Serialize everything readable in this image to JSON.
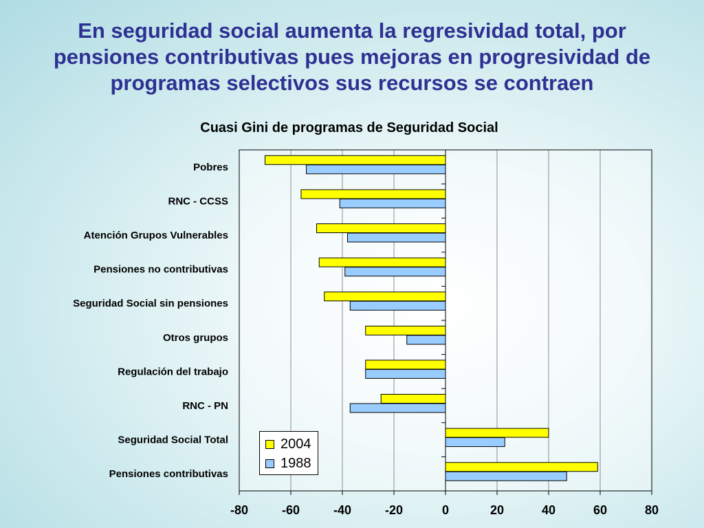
{
  "slide": {
    "title_lines": [
      "En seguridad social aumenta la regresividad total, por",
      "pensiones contributivas pues mejoras en progresividad de",
      "programas selectivos sus recursos se contraen"
    ]
  },
  "colors": {
    "s2004": "#ffff00",
    "s1988": "#99ccff",
    "title": "#2e3192"
  },
  "chart_data": {
    "type": "bar",
    "orientation": "horizontal",
    "title": "Cuasi Gini de programas de Seguridad Social",
    "categories": [
      "Pobres",
      "RNC - CCSS",
      "Atención Grupos Vulnerables",
      "Pensiones no contributivas",
      "Seguridad Social sin pensiones",
      "Otros grupos",
      "Regulación del trabajo",
      "RNC - PN",
      "Seguridad Social Total",
      "Pensiones contributivas"
    ],
    "series": [
      {
        "name": "2004",
        "values": [
          -70,
          -56,
          -50,
          -49,
          -47,
          -31,
          -31,
          -25,
          40,
          59
        ]
      },
      {
        "name": "1988",
        "values": [
          -54,
          -41,
          -38,
          -39,
          -37,
          -15,
          -31,
          -37,
          23,
          47
        ]
      }
    ],
    "xlim": [
      -80,
      80
    ],
    "xticks": [
      "-80",
      "-60",
      "-40",
      "-20",
      "0",
      "20",
      "40",
      "60",
      "80"
    ],
    "grid": true,
    "legend_position": "bottom-left"
  }
}
